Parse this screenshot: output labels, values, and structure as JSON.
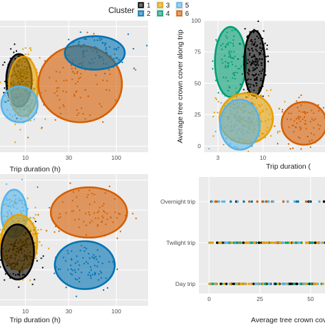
{
  "legend": {
    "title": "Cluster",
    "items": [
      {
        "label": "1",
        "color": "#000000"
      },
      {
        "label": "2",
        "color": "#0072B2"
      },
      {
        "label": "3",
        "color": "#E69F00"
      },
      {
        "label": "4",
        "color": "#009E73"
      },
      {
        "label": "5",
        "color": "#56B4E9"
      },
      {
        "label": "6",
        "color": "#D55E00"
      }
    ]
  },
  "chart_data": [
    {
      "type": "scatter",
      "panel": "top-left",
      "xlabel": "Trip duration (h)",
      "ylabel": "",
      "x_scale": "log10",
      "x_ticks": [
        10,
        30,
        100
      ],
      "x_tick_labels": [
        "10",
        "30",
        "100"
      ],
      "grid": true,
      "ellipses": [
        {
          "cluster": "1",
          "cx_hours": 8.5,
          "cy": 55,
          "rx_log": 0.14,
          "ry": 22
        },
        {
          "cluster": "3",
          "cx_hours": 9.5,
          "cy": 50,
          "rx_log": 0.16,
          "ry": 25
        },
        {
          "cluster": "5",
          "cx_hours": 8.6,
          "cy": 35,
          "rx_log": 0.2,
          "ry": 15
        },
        {
          "cluster": "6",
          "cx_hours": 40,
          "cy": 52,
          "rx_log": 0.46,
          "ry": 32
        },
        {
          "cluster": "2",
          "cx_hours": 58,
          "cy": 78,
          "rx_log": 0.33,
          "ry": 14
        }
      ]
    },
    {
      "type": "scatter",
      "panel": "top-right",
      "xlabel": "Trip duration (",
      "ylabel": "Average tree crown cover along trip",
      "x_scale": "log10",
      "x_ticks": [
        3,
        10
      ],
      "x_tick_labels": [
        "3",
        "10"
      ],
      "y_ticks": [
        0,
        25,
        50,
        75,
        100
      ],
      "y_tick_labels": [
        "0",
        "25",
        "50",
        "75",
        "100"
      ],
      "ylim": [
        -5,
        100
      ],
      "grid": true,
      "ellipses": [
        {
          "cluster": "4",
          "cx_hours": 4.2,
          "cy": 67,
          "rx_log": 0.18,
          "ry": 28
        },
        {
          "cluster": "1",
          "cx_hours": 8.0,
          "cy": 66,
          "rx_log": 0.12,
          "ry": 26
        },
        {
          "cluster": "3",
          "cx_hours": 6.4,
          "cy": 22,
          "rx_log": 0.31,
          "ry": 20
        },
        {
          "cluster": "5",
          "cx_hours": 5.4,
          "cy": 17,
          "rx_log": 0.23,
          "ry": 20
        },
        {
          "cluster": "6",
          "cx_hours": 30,
          "cy": 18,
          "rx_log": 0.26,
          "ry": 17
        }
      ]
    },
    {
      "type": "scatter",
      "panel": "bottom-left",
      "xlabel": "Trip duration (h)",
      "ylabel": "",
      "x_scale": "log10",
      "x_ticks": [
        10,
        30,
        100
      ],
      "x_tick_labels": [
        "10",
        "30",
        "100"
      ],
      "grid": true,
      "ellipses": [
        {
          "cluster": "5",
          "cx_hours": 7.5,
          "cy": 72,
          "rx_log": 0.14,
          "ry": 20
        },
        {
          "cluster": "3",
          "cx_hours": 8.5,
          "cy": 48,
          "rx_log": 0.2,
          "ry": 23
        },
        {
          "cluster": "1",
          "cx_hours": 8.2,
          "cy": 40,
          "rx_log": 0.18,
          "ry": 23
        },
        {
          "cluster": "6",
          "cx_hours": 50,
          "cy": 73,
          "rx_log": 0.42,
          "ry": 21
        },
        {
          "cluster": "2",
          "cx_hours": 45,
          "cy": 29,
          "rx_log": 0.33,
          "ry": 20
        }
      ]
    },
    {
      "type": "strip",
      "panel": "bottom-right",
      "xlabel": "Average tree crown cov",
      "ylabel": "",
      "categories": [
        "Overnight trip",
        "Twilight trip",
        "Day trip"
      ],
      "x_ticks": [
        0,
        25,
        50
      ],
      "x_tick_labels": [
        "0",
        "25",
        "50"
      ],
      "grid": true
    }
  ]
}
